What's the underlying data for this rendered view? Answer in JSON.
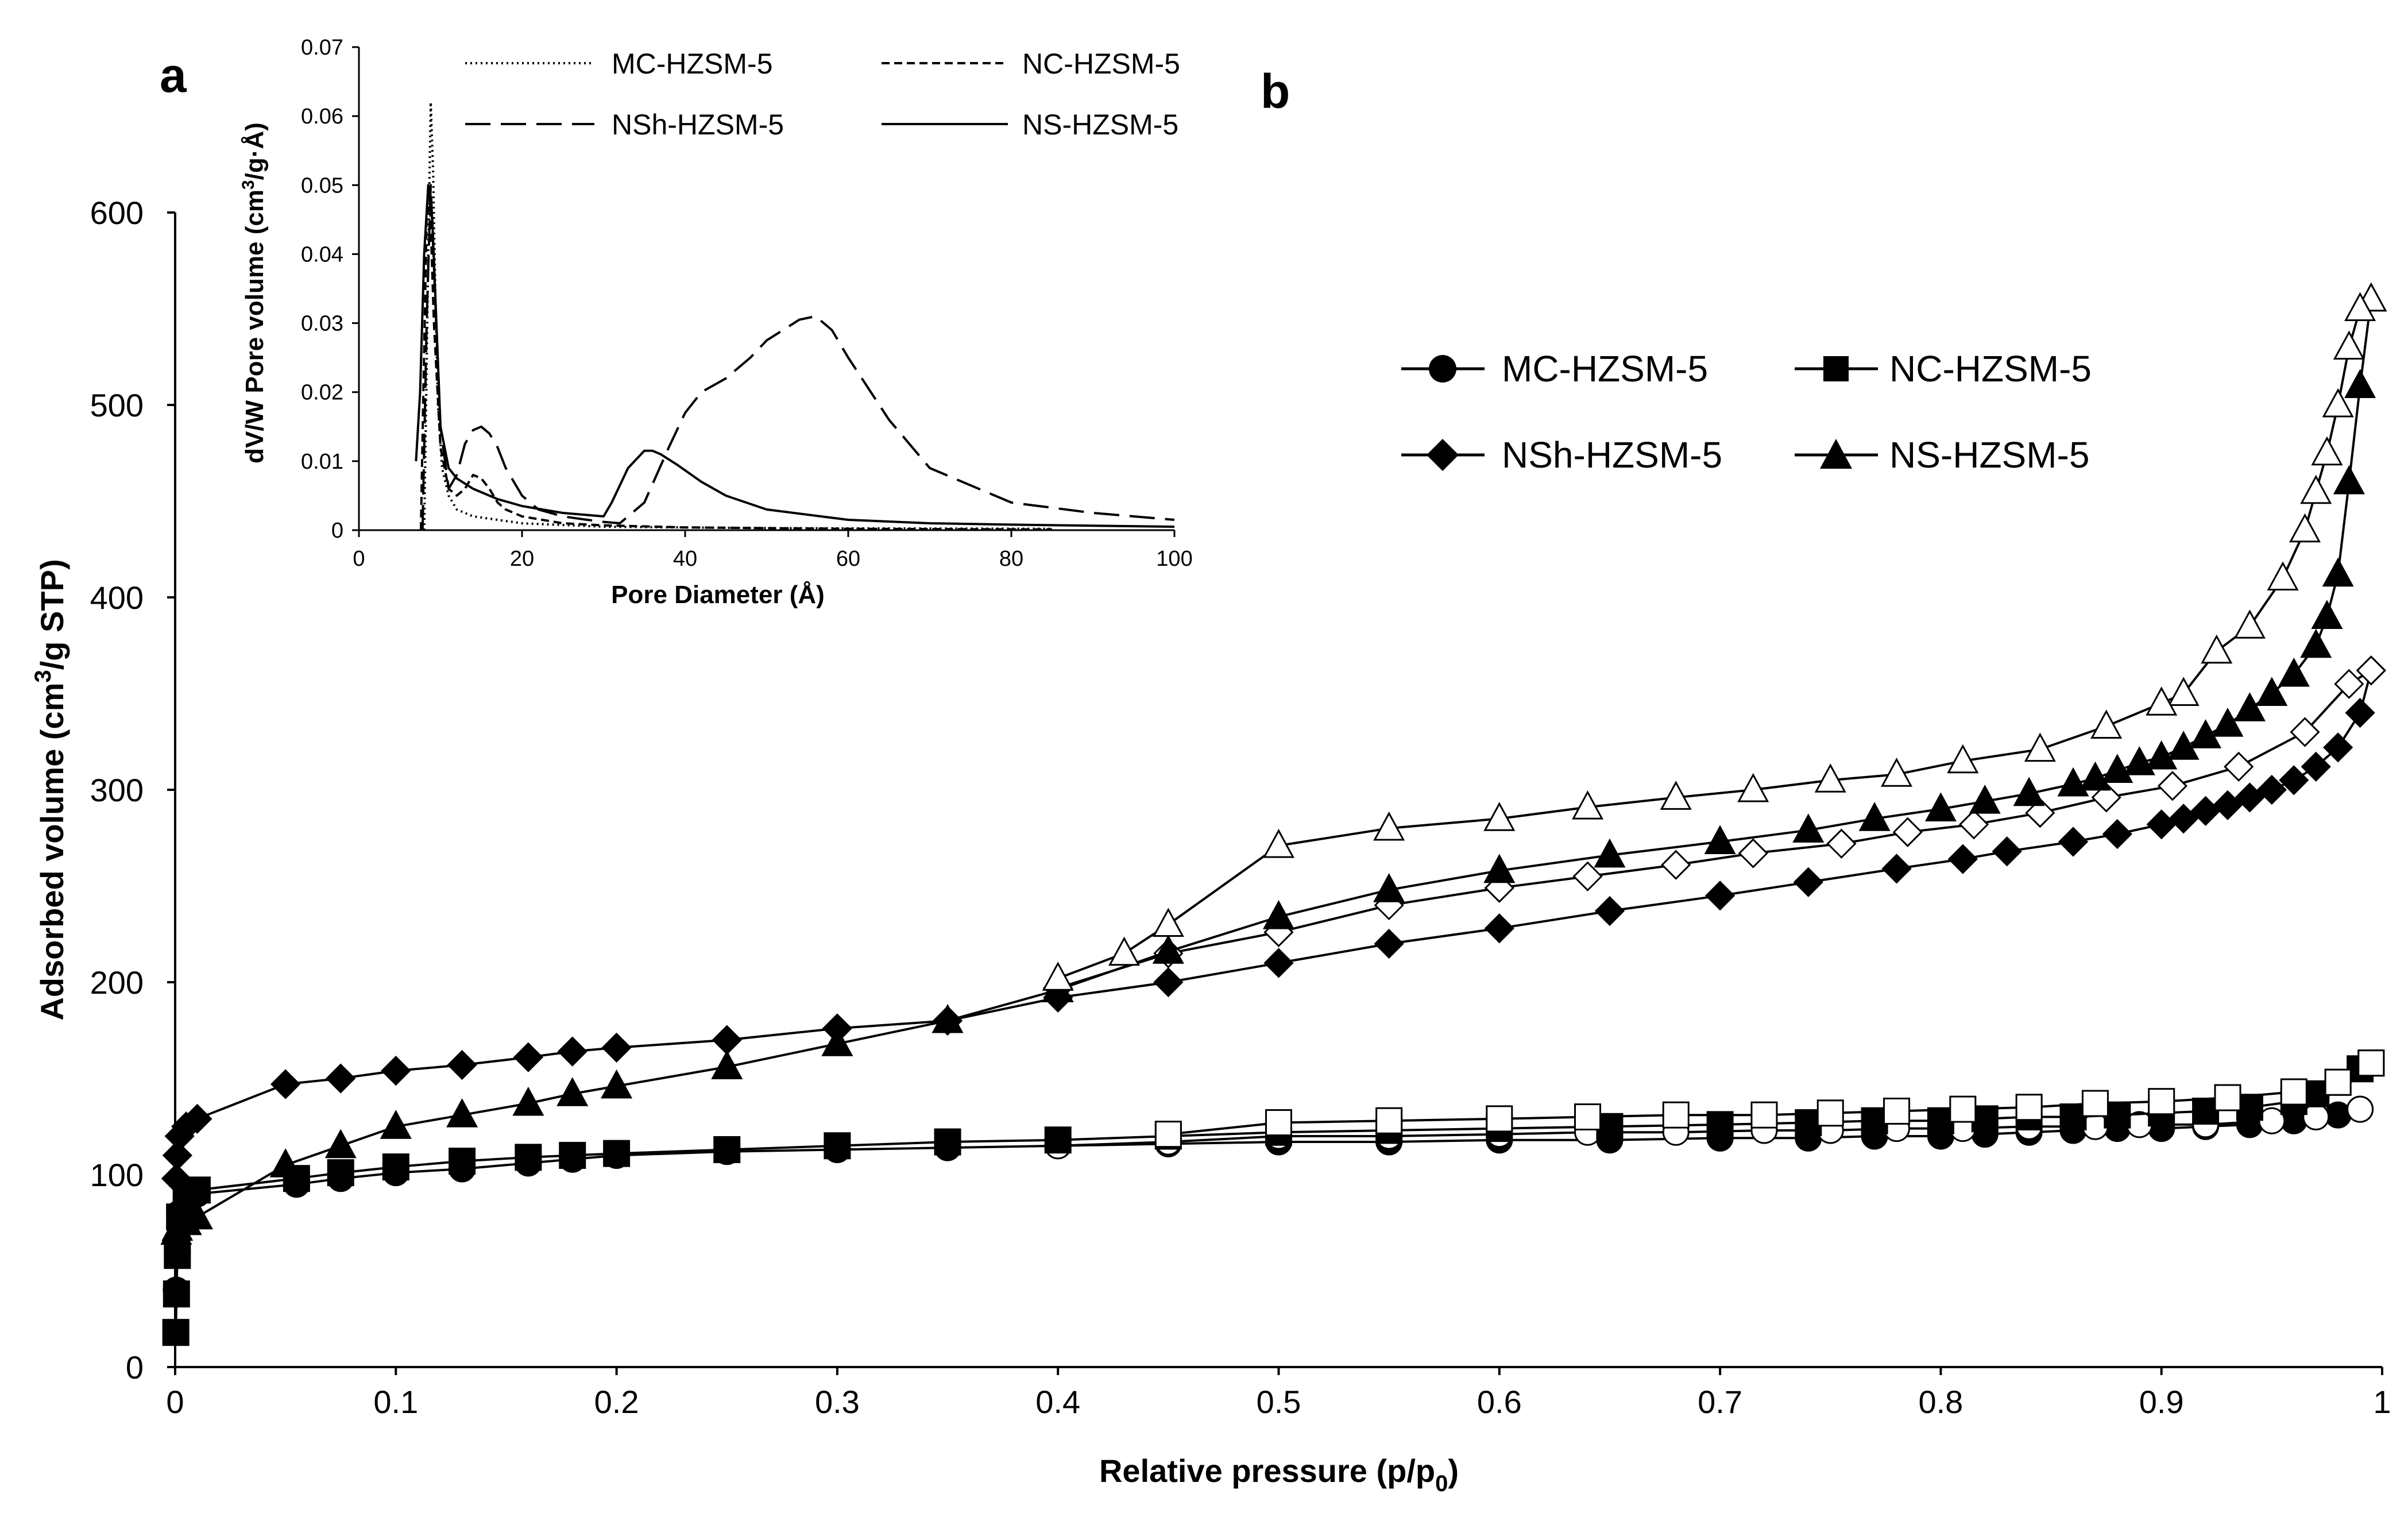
{
  "chart_data": [
    {
      "id": "main",
      "type": "line",
      "panel_label": "b",
      "xlabel": "Relative pressure (p/p",
      "xlabel_sub": "0",
      "xlabel_end": ")",
      "ylabel": "Adsorbed volume (cm",
      "ylabel_sup": "3",
      "ylabel_end": "/g STP)",
      "xlim": [
        0,
        1
      ],
      "ylim": [
        0,
        600
      ],
      "x_ticks": [
        0,
        0.1,
        0.2,
        0.3,
        0.4,
        0.5,
        0.6,
        0.7,
        0.8,
        0.9,
        1
      ],
      "x_tick_labels": [
        "0",
        "0.1",
        "0.2",
        "0.3",
        "0.4",
        "0.5",
        "0.6",
        "0.7",
        "0.8",
        "0.9",
        "1"
      ],
      "y_ticks": [
        0,
        100,
        200,
        300,
        400,
        500,
        600
      ],
      "y_tick_labels": [
        "0",
        "100",
        "200",
        "300",
        "400",
        "500",
        "600"
      ],
      "grid": false,
      "legend_position": "top-right",
      "series": [
        {
          "name": "MC-HZSM-5",
          "marker": "circle",
          "adsorption": {
            "x": [
              0.0005,
              0.001,
              0.002,
              0.005,
              0.01,
              0.055,
              0.075,
              0.1,
              0.13,
              0.16,
              0.18,
              0.2,
              0.25,
              0.3,
              0.35,
              0.4,
              0.45,
              0.5,
              0.55,
              0.6,
              0.65,
              0.7,
              0.74,
              0.77,
              0.8,
              0.82,
              0.84,
              0.86,
              0.88,
              0.9,
              0.92,
              0.94,
              0.96,
              0.98,
              0.99
            ],
            "y": [
              40,
              60,
              80,
              88,
              90,
              95,
              98,
              101,
              103,
              106,
              108,
              110,
              112,
              113,
              114,
              115,
              116,
              117,
              117,
              118,
              118,
              119,
              119,
              120,
              120,
              121,
              122,
              123,
              124,
              124,
              125,
              126,
              128,
              131,
              134
            ]
          },
          "desorption": {
            "x": [
              0.99,
              0.97,
              0.95,
              0.92,
              0.89,
              0.87,
              0.84,
              0.81,
              0.78,
              0.75,
              0.72,
              0.68,
              0.64,
              0.6,
              0.55,
              0.5,
              0.45,
              0.4
            ],
            "y": [
              134,
              130,
              128,
              126,
              126,
              125,
              125,
              124,
              124,
              123,
              123,
              122,
              122,
              121,
              120,
              120,
              117,
              115
            ]
          }
        },
        {
          "name": "NC-HZSM-5",
          "marker": "square",
          "adsorption": {
            "x": [
              0.0003,
              0.0006,
              0.001,
              0.002,
              0.005,
              0.01,
              0.055,
              0.075,
              0.1,
              0.13,
              0.16,
              0.18,
              0.2,
              0.25,
              0.3,
              0.35,
              0.4,
              0.45,
              0.5,
              0.55,
              0.6,
              0.65,
              0.7,
              0.74,
              0.77,
              0.8,
              0.82,
              0.84,
              0.86,
              0.88,
              0.9,
              0.92,
              0.94,
              0.96,
              0.97,
              0.98,
              0.99,
              0.995
            ],
            "y": [
              18,
              38,
              58,
              78,
              88,
              92,
              98,
              101,
              104,
              107,
              109,
              110,
              111,
              113,
              115,
              117,
              118,
              120,
              122,
              123,
              124,
              125,
              126,
              127,
              128,
              128,
              129,
              130,
              130,
              131,
              132,
              133,
              135,
              138,
              142,
              148,
              155,
              158
            ]
          },
          "desorption": {
            "x": [
              0.995,
              0.98,
              0.96,
              0.93,
              0.9,
              0.87,
              0.84,
              0.81,
              0.78,
              0.75,
              0.72,
              0.68,
              0.64,
              0.6,
              0.55,
              0.5,
              0.45
            ],
            "y": [
              158,
              148,
              143,
              140,
              138,
              137,
              135,
              134,
              133,
              132,
              131,
              131,
              130,
              129,
              128,
              127,
              121
            ]
          }
        },
        {
          "name": "NSh-HZSM-5",
          "marker": "diamond",
          "adsorption": {
            "x": [
              0.0005,
              0.001,
              0.002,
              0.005,
              0.01,
              0.05,
              0.075,
              0.1,
              0.13,
              0.16,
              0.18,
              0.2,
              0.25,
              0.3,
              0.35,
              0.4,
              0.45,
              0.5,
              0.55,
              0.6,
              0.65,
              0.7,
              0.74,
              0.78,
              0.81,
              0.83,
              0.86,
              0.88,
              0.9,
              0.91,
              0.92,
              0.93,
              0.94,
              0.95,
              0.96,
              0.97,
              0.98,
              0.99,
              0.995
            ],
            "y": [
              98,
              110,
              120,
              125,
              129,
              147,
              150,
              154,
              157,
              161,
              164,
              166,
              170,
              176,
              180,
              192,
              200,
              210,
              220,
              228,
              237,
              245,
              252,
              259,
              264,
              268,
              273,
              277,
              282,
              285,
              289,
              292,
              296,
              300,
              305,
              312,
              322,
              340,
              362
            ]
          },
          "desorption": {
            "x": [
              0.995,
              0.985,
              0.965,
              0.935,
              0.905,
              0.875,
              0.845,
              0.815,
              0.785,
              0.755,
              0.715,
              0.68,
              0.64,
              0.6,
              0.55,
              0.5,
              0.45,
              0.4
            ],
            "y": [
              362,
              355,
              330,
              312,
              302,
              296,
              288,
              282,
              278,
              272,
              267,
              261,
              255,
              249,
              240,
              226,
              215,
              197
            ]
          }
        },
        {
          "name": "NS-HZSM-5",
          "marker": "triangle",
          "adsorption": {
            "x": [
              0.0005,
              0.001,
              0.005,
              0.01,
              0.05,
              0.075,
              0.1,
              0.13,
              0.16,
              0.18,
              0.2,
              0.25,
              0.3,
              0.35,
              0.4,
              0.45,
              0.5,
              0.55,
              0.6,
              0.65,
              0.7,
              0.74,
              0.77,
              0.8,
              0.82,
              0.84,
              0.86,
              0.87,
              0.88,
              0.89,
              0.9,
              0.91,
              0.92,
              0.93,
              0.94,
              0.95,
              0.96,
              0.97,
              0.975,
              0.98,
              0.985,
              0.99,
              0.995
            ],
            "y": [
              70,
              72,
              75,
              78,
              105,
              115,
              125,
              131,
              137,
              142,
              146,
              156,
              168,
              180,
              196,
              216,
              234,
              248,
              258,
              266,
              273,
              279,
              285,
              290,
              294,
              298,
              303,
              306,
              310,
              314,
              317,
              322,
              328,
              334,
              342,
              350,
              360,
              375,
              390,
              412,
              460,
              510,
              555
            ]
          },
          "desorption": {
            "x": [
              0.995,
              0.99,
              0.985,
              0.98,
              0.975,
              0.97,
              0.965,
              0.955,
              0.94,
              0.925,
              0.91,
              0.9,
              0.875,
              0.845,
              0.81,
              0.78,
              0.75,
              0.715,
              0.68,
              0.64,
              0.6,
              0.55,
              0.5,
              0.45,
              0.43,
              0.4
            ],
            "y": [
              555,
              550,
              530,
              500,
              475,
              455,
              435,
              410,
              385,
              372,
              350,
              345,
              333,
              321,
              315,
              308,
              305,
              300,
              296,
              291,
              285,
              280,
              271,
              230,
              215,
              202
            ]
          }
        }
      ]
    },
    {
      "id": "inset",
      "type": "line",
      "panel_label": "a",
      "xlabel": "Pore Diameter (Å)",
      "ylabel": "dV/W Pore volume (cm",
      "ylabel_sup": "3",
      "ylabel_end": "/g·Å)",
      "xlim": [
        0,
        100
      ],
      "ylim": [
        0,
        0.07
      ],
      "x_ticks": [
        0,
        20,
        40,
        60,
        80,
        100
      ],
      "x_tick_labels": [
        "0",
        "20",
        "40",
        "60",
        "80",
        "100"
      ],
      "y_ticks": [
        0,
        0.01,
        0.02,
        0.03,
        0.04,
        0.05,
        0.06,
        0.07
      ],
      "y_tick_labels": [
        "0",
        "0.01",
        "0.02",
        "0.03",
        "0.04",
        "0.05",
        "0.06",
        "0.07"
      ],
      "grid": false,
      "legend_position": "top",
      "series": [
        {
          "name": "MC-HZSM-5",
          "dash": "dotted",
          "x": [
            8,
            8.2,
            8.5,
            8.8,
            9.1,
            9.4,
            9.7,
            10.2,
            11,
            12,
            14,
            20,
            30,
            50,
            85
          ],
          "y": [
            0.0,
            0.015,
            0.04,
            0.062,
            0.052,
            0.032,
            0.018,
            0.009,
            0.005,
            0.003,
            0.002,
            0.001,
            0.0005,
            0.0003,
            0.0002
          ]
        },
        {
          "name": "NC-HZSM-5",
          "dash": "short-dash",
          "x": [
            7.6,
            7.9,
            8.3,
            8.7,
            9.2,
            10,
            11,
            12,
            13,
            14,
            15,
            16,
            17,
            18,
            20,
            25,
            30,
            40,
            60,
            85
          ],
          "y": [
            0.0,
            0.02,
            0.045,
            0.048,
            0.03,
            0.012,
            0.006,
            0.005,
            0.006,
            0.008,
            0.0075,
            0.006,
            0.004,
            0.003,
            0.002,
            0.001,
            0.0007,
            0.0004,
            0.0002,
            0.0001
          ]
        },
        {
          "name": "NSh-HZSM-5",
          "dash": "long-dash",
          "x": [
            7.8,
            8.3,
            8.8,
            9.3,
            10,
            11,
            12,
            13,
            14,
            15,
            16,
            17,
            18,
            20,
            22,
            25,
            28,
            30,
            32,
            35,
            38,
            40,
            42,
            45,
            48,
            50,
            52,
            54,
            56,
            58,
            60,
            65,
            70,
            80,
            90,
            100
          ],
          "y": [
            0.0,
            0.03,
            0.05,
            0.035,
            0.015,
            0.006,
            0.008,
            0.0125,
            0.0145,
            0.015,
            0.014,
            0.012,
            0.009,
            0.005,
            0.003,
            0.002,
            0.0015,
            0.0012,
            0.001,
            0.004,
            0.012,
            0.017,
            0.02,
            0.022,
            0.025,
            0.0275,
            0.029,
            0.0305,
            0.031,
            0.029,
            0.025,
            0.016,
            0.009,
            0.004,
            0.0025,
            0.0015
          ]
        },
        {
          "name": "NS-HZSM-5",
          "dash": "solid",
          "x": [
            7,
            7.5,
            8,
            8.5,
            9,
            9.5,
            10,
            11,
            12,
            14,
            17,
            20,
            25,
            30,
            31,
            33,
            35,
            36,
            37,
            39,
            42,
            45,
            50,
            60,
            70,
            80,
            100
          ],
          "y": [
            0.01,
            0.02,
            0.04,
            0.05,
            0.045,
            0.03,
            0.015,
            0.009,
            0.0075,
            0.006,
            0.0045,
            0.0035,
            0.0025,
            0.002,
            0.004,
            0.009,
            0.0115,
            0.0115,
            0.011,
            0.0095,
            0.007,
            0.005,
            0.003,
            0.0015,
            0.001,
            0.0008,
            0.0005
          ]
        }
      ]
    }
  ]
}
